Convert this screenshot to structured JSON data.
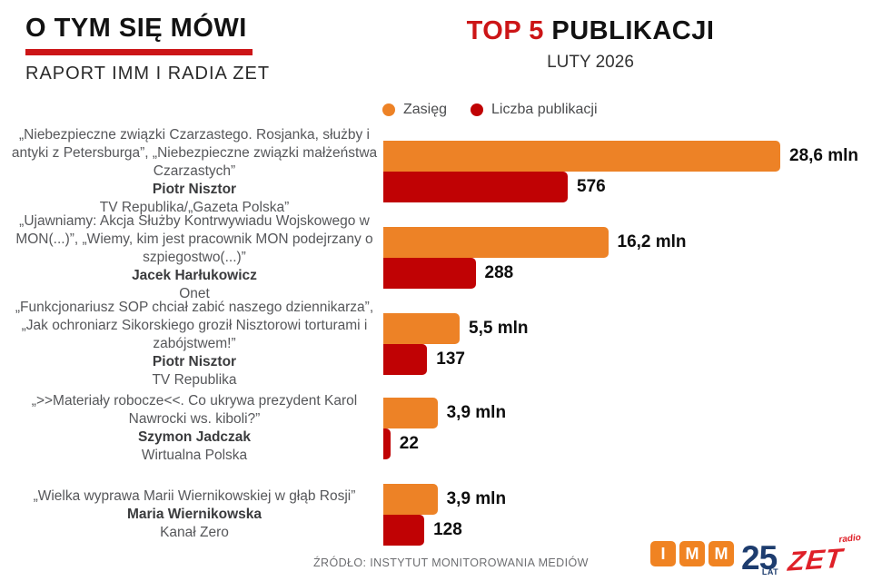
{
  "header": {
    "title": "O TYM SIĘ MÓWI",
    "subtitle": "RAPORT IMM I RADIA ZET"
  },
  "chart_header": {
    "title_accent": "TOP 5",
    "title_rest": " PUBLIKACJI",
    "subtitle": "LUTY 2026"
  },
  "colors": {
    "reach_orange": "#ED8226",
    "count_red": "#C00204",
    "accent_red": "#CC1517",
    "imm_orange": "#F08322",
    "navy": "#1D3C6E",
    "zet_red": "#DF2028"
  },
  "legend": {
    "reach_label": "Zasięg",
    "count_label": "Liczba publikacji"
  },
  "chart_data": {
    "type": "bar",
    "orientation": "horizontal",
    "title": "TOP 5 PUBLIKACJI",
    "subtitle": "LUTY 2026",
    "legend_position": "top",
    "grid": false,
    "categories": [
      "Piotr Nisztor — TV Republika/„Gazeta Polska”",
      "Jacek Harłukowicz — Onet",
      "Piotr Nisztor — TV Republika",
      "Szymon Jadczak — Wirtualna Polska",
      "Maria Wiernikowska — Kanał Zero"
    ],
    "series": [
      {
        "name": "Zasięg",
        "unit": "mln",
        "color": "#ED8226",
        "values": [
          28.6,
          16.2,
          5.5,
          3.9,
          3.9
        ],
        "labels": [
          "28,6 mln",
          "16,2 mln",
          "5,5 mln",
          "3,9 mln",
          "3,9 mln"
        ]
      },
      {
        "name": "Liczba publikacji",
        "unit": "",
        "color": "#C00204",
        "values": [
          576,
          288,
          137,
          22,
          128
        ],
        "labels": [
          "576",
          "288",
          "137",
          "22",
          "128"
        ]
      }
    ]
  },
  "entries": [
    {
      "title": "„Niebezpieczne związki Czarzastego. Rosjanka, służby i antyki z Petersburga”, „Niebezpieczne związki małżeństwa Czarzastych”",
      "author": "Piotr Nisztor",
      "outlet": "TV Republika/„Gazeta Polska”",
      "reach_label": "28,6 mln",
      "count_label": "576"
    },
    {
      "title": "„Ujawniamy: Akcja Służby Kontrwywiadu Wojskowego w MON(...)”,  „Wiemy, kim jest pracownik MON podejrzany o szpiegostwo(...)”",
      "author": "Jacek Harłukowicz",
      "outlet": "Onet",
      "reach_label": "16,2 mln",
      "count_label": "288"
    },
    {
      "title": "„Funkcjonariusz SOP chciał zabić naszego dziennikarza”, „Jak ochroniarz Sikorskiego groził Nisztorowi torturami i zabójstwem!”",
      "author": "Piotr Nisztor",
      "outlet": "TV Republika",
      "reach_label": "5,5 mln",
      "count_label": "137"
    },
    {
      "title": "„>>Materiały robocze<<. Co ukrywa prezydent Karol Nawrocki ws. kiboli?”",
      "author": "Szymon Jadczak",
      "outlet": "Wirtualna Polska",
      "reach_label": "3,9 mln",
      "count_label": "22"
    },
    {
      "title": "„Wielka wyprawa Marii Wiernikowskiej w głąb Rosji”",
      "author": "Maria Wiernikowska",
      "outlet": "Kanał Zero",
      "reach_label": "3,9 mln",
      "count_label": "128"
    }
  ],
  "footer": {
    "source": "ŹRÓDŁO: INSTYTUT MONITOROWANIA MEDIÓW",
    "imm": {
      "letters": [
        "I",
        "M",
        "M"
      ],
      "years": "25",
      "lat": "LAT"
    },
    "zet": {
      "radio": "radio",
      "name": "ZET"
    }
  }
}
